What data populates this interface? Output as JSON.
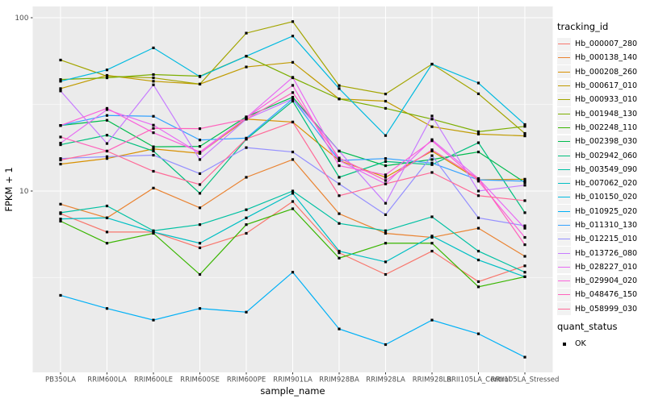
{
  "figure": {
    "background": "#FFFFFF",
    "panel_background": "#EBEBEB",
    "grid_color": "#FFFFFF",
    "axis_text_color": "#4D4D4D",
    "tick_color": "#333333",
    "point_color": "#000000"
  },
  "chart_data": {
    "type": "line",
    "xlabel": "sample_name",
    "ylabel": "FPKM + 1",
    "y_scale": "log10",
    "y_tick_labels": [
      "10",
      "100"
    ],
    "y_tick_values": [
      10,
      100
    ],
    "y_minor_values": [
      3.162,
      31.623
    ],
    "ylim": [
      1.0,
      110
    ],
    "grid": true,
    "legend_position": "right",
    "categories": [
      "PB350LA",
      "RRIM600LA",
      "RRIM600LE",
      "RRIM600SE",
      "RRIM600PE",
      "RRIM901LA",
      "RRIM928BA",
      "RRIM928LA",
      "RRIM928LB",
      "RRII105LA_Control",
      "RRII105LA_Stressed"
    ],
    "legend_title": "tracking_id",
    "series": [
      {
        "name": "Hb_000007_280",
        "color": "#F8766D",
        "values": [
          7.4,
          5.8,
          5.8,
          4.7,
          5.7,
          8.7,
          4.4,
          3.3,
          4.5,
          3.0,
          3.7
        ]
      },
      {
        "name": "Hb_000138_140",
        "color": "#EA8331",
        "values": [
          8.4,
          7.0,
          10.4,
          8.0,
          12.0,
          15.2,
          7.4,
          5.7,
          5.4,
          6.1,
          4.2
        ]
      },
      {
        "name": "Hb_000208_260",
        "color": "#D89000",
        "values": [
          14.3,
          15.4,
          17.5,
          16.5,
          26.0,
          25.0,
          15.0,
          12.0,
          17.0,
          11.6,
          11.7
        ]
      },
      {
        "name": "Hb_000617_010",
        "color": "#C09B00",
        "values": [
          39.0,
          46.5,
          43.0,
          41.4,
          52.0,
          55.3,
          34.0,
          33.0,
          23.5,
          21.3,
          20.8
        ]
      },
      {
        "name": "Hb_000933_010",
        "color": "#A3A500",
        "values": [
          57.0,
          46.0,
          45.0,
          41.4,
          81.5,
          95.0,
          40.6,
          36.3,
          54.0,
          36.4,
          21.5
        ]
      },
      {
        "name": "Hb_001948_130",
        "color": "#7CAE00",
        "values": [
          44.0,
          45.0,
          47.0,
          46.0,
          60.0,
          45.0,
          34.0,
          30.0,
          26.0,
          22.0,
          23.6
        ]
      },
      {
        "name": "Hb_002248_110",
        "color": "#39B600",
        "values": [
          6.7,
          5.0,
          5.7,
          3.3,
          6.4,
          7.9,
          4.1,
          5.0,
          5.0,
          2.8,
          3.2
        ]
      },
      {
        "name": "Hb_002398_030",
        "color": "#00BB4E",
        "values": [
          23.9,
          25.6,
          18.0,
          18.1,
          26.8,
          34.8,
          17.0,
          14.0,
          15.2,
          16.8,
          11.2
        ]
      },
      {
        "name": "Hb_002942_060",
        "color": "#00BF7D",
        "values": [
          18.5,
          21.0,
          17.0,
          9.7,
          19.9,
          33.0,
          12.0,
          14.8,
          14.2,
          19.0,
          7.5
        ]
      },
      {
        "name": "Hb_003549_090",
        "color": "#00C1A3",
        "values": [
          7.5,
          8.2,
          5.9,
          6.4,
          7.8,
          10.0,
          6.5,
          5.9,
          7.1,
          4.5,
          3.4
        ]
      },
      {
        "name": "Hb_007062_020",
        "color": "#00BFC4",
        "values": [
          6.9,
          7.0,
          5.8,
          5.0,
          7.0,
          9.7,
          4.5,
          3.9,
          5.5,
          4.0,
          3.2
        ]
      },
      {
        "name": "Hb_010150_020",
        "color": "#00BAE0",
        "values": [
          43.0,
          50.0,
          67.0,
          45.7,
          60.0,
          78.4,
          39.0,
          20.9,
          54.0,
          42.0,
          24.2
        ]
      },
      {
        "name": "Hb_010925_020",
        "color": "#00B0F6",
        "values": [
          2.5,
          2.1,
          1.8,
          2.1,
          2.0,
          3.4,
          1.6,
          1.3,
          1.8,
          1.5,
          1.1
        ]
      },
      {
        "name": "Hb_011310_130",
        "color": "#35A2FF",
        "values": [
          23.9,
          27.3,
          27.0,
          19.7,
          20.2,
          34.0,
          15.0,
          15.4,
          14.5,
          11.6,
          11.4
        ]
      },
      {
        "name": "Hb_012215_010",
        "color": "#9590FF",
        "values": [
          15.4,
          15.8,
          16.1,
          12.6,
          17.8,
          16.8,
          11.0,
          7.3,
          16.0,
          7.0,
          6.3
        ]
      },
      {
        "name": "Hb_013726_080",
        "color": "#C77CFF",
        "values": [
          37.8,
          18.8,
          41.0,
          15.2,
          26.0,
          34.0,
          17.0,
          8.5,
          27.1,
          10.0,
          10.8
        ]
      },
      {
        "name": "Hb_028227_010",
        "color": "#E76BF3",
        "values": [
          18.9,
          29.5,
          24.0,
          16.5,
          26.5,
          45.3,
          15.0,
          11.0,
          19.8,
          11.8,
          6.1
        ]
      },
      {
        "name": "Hb_029904_020",
        "color": "#FA62DB",
        "values": [
          23.9,
          30.0,
          21.7,
          16.8,
          26.5,
          40.7,
          14.0,
          12.4,
          19.5,
          11.4,
          5.4
        ]
      },
      {
        "name": "Hb_048476_150",
        "color": "#FF62BC",
        "values": [
          20.5,
          17.0,
          23.0,
          22.9,
          26.0,
          37.0,
          15.5,
          11.5,
          17.3,
          11.8,
          4.9
        ]
      },
      {
        "name": "Hb_058999_030",
        "color": "#FF6A98",
        "values": [
          15.1,
          17.0,
          13.0,
          10.9,
          20.0,
          25.0,
          9.4,
          11.0,
          12.8,
          9.4,
          8.8
        ]
      }
    ],
    "quant_legend": {
      "title": "quant_status",
      "items": [
        {
          "label": "OK"
        }
      ]
    }
  }
}
